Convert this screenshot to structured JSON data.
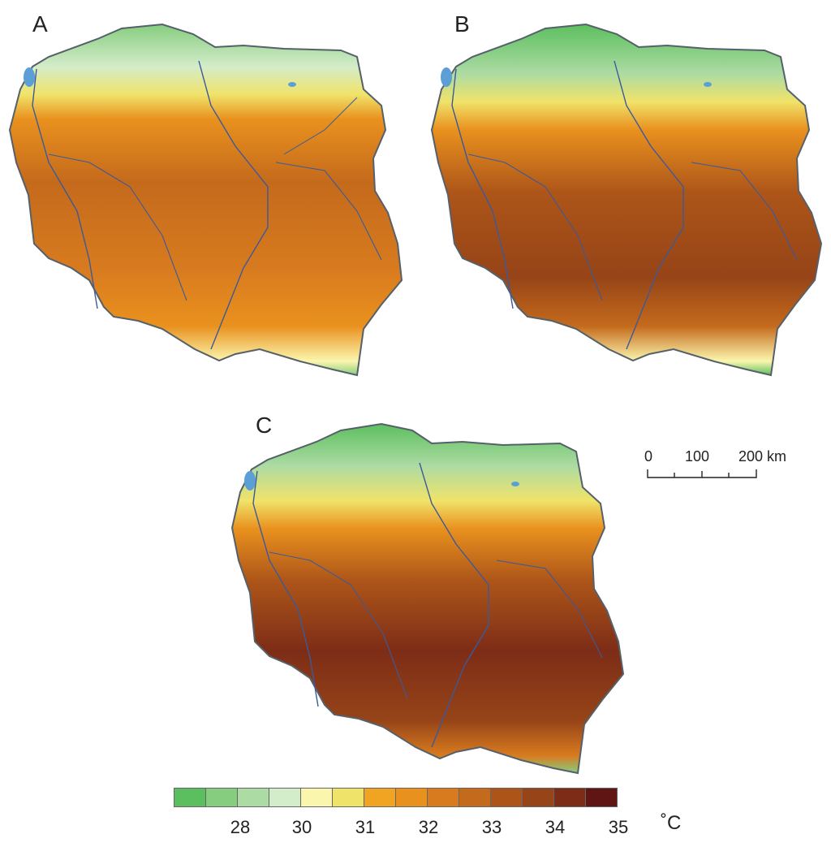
{
  "panels": [
    {
      "label": "A"
    },
    {
      "label": "B"
    },
    {
      "label": "C"
    }
  ],
  "scale_bar": {
    "ticks": [
      "0",
      "100",
      "200 km"
    ]
  },
  "legend": {
    "colors": [
      "#5cbf5f",
      "#86cd7f",
      "#acdba3",
      "#d3ecc9",
      "#fbf6ad",
      "#f0e36a",
      "#f0a422",
      "#e9911e",
      "#d87b1f",
      "#c46a1c",
      "#ad5519",
      "#964418",
      "#7d2d17",
      "#5e1513"
    ],
    "tick_labels": [
      "28",
      "30",
      "31",
      "32",
      "33",
      "34",
      "35"
    ],
    "unit": "˚C"
  },
  "map_colors": {
    "border": "#55606a",
    "river": "#3a5a9a",
    "lake": "#5b9fd6"
  }
}
